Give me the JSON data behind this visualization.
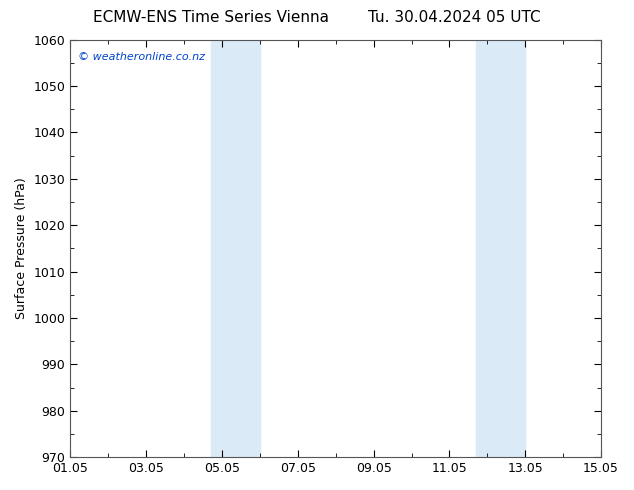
{
  "title_left": "ECMW-ENS Time Series Vienna",
  "title_right": "Tu. 30.04.2024 05 UTC",
  "ylabel": "Surface Pressure (hPa)",
  "xlim": [
    0,
    14
  ],
  "ylim": [
    970,
    1060
  ],
  "yticks": [
    970,
    980,
    990,
    1000,
    1010,
    1020,
    1030,
    1040,
    1050,
    1060
  ],
  "xtick_labels": [
    "01.05",
    "03.05",
    "05.05",
    "07.05",
    "09.05",
    "11.05",
    "13.05",
    "15.05"
  ],
  "xtick_positions": [
    0,
    2,
    4,
    6,
    8,
    10,
    12,
    14
  ],
  "shaded_bands": [
    {
      "x_start": 3.7,
      "x_end": 5.0
    },
    {
      "x_start": 10.7,
      "x_end": 12.0
    }
  ],
  "shaded_color": "#daeaf7",
  "background_color": "#ffffff",
  "plot_bg_color": "#ffffff",
  "spine_color": "#555555",
  "title_fontsize": 11,
  "label_fontsize": 9,
  "watermark_text": "© weatheronline.co.nz",
  "watermark_color": "#0044cc",
  "watermark_fontsize": 8,
  "tick_label_fontsize": 9
}
